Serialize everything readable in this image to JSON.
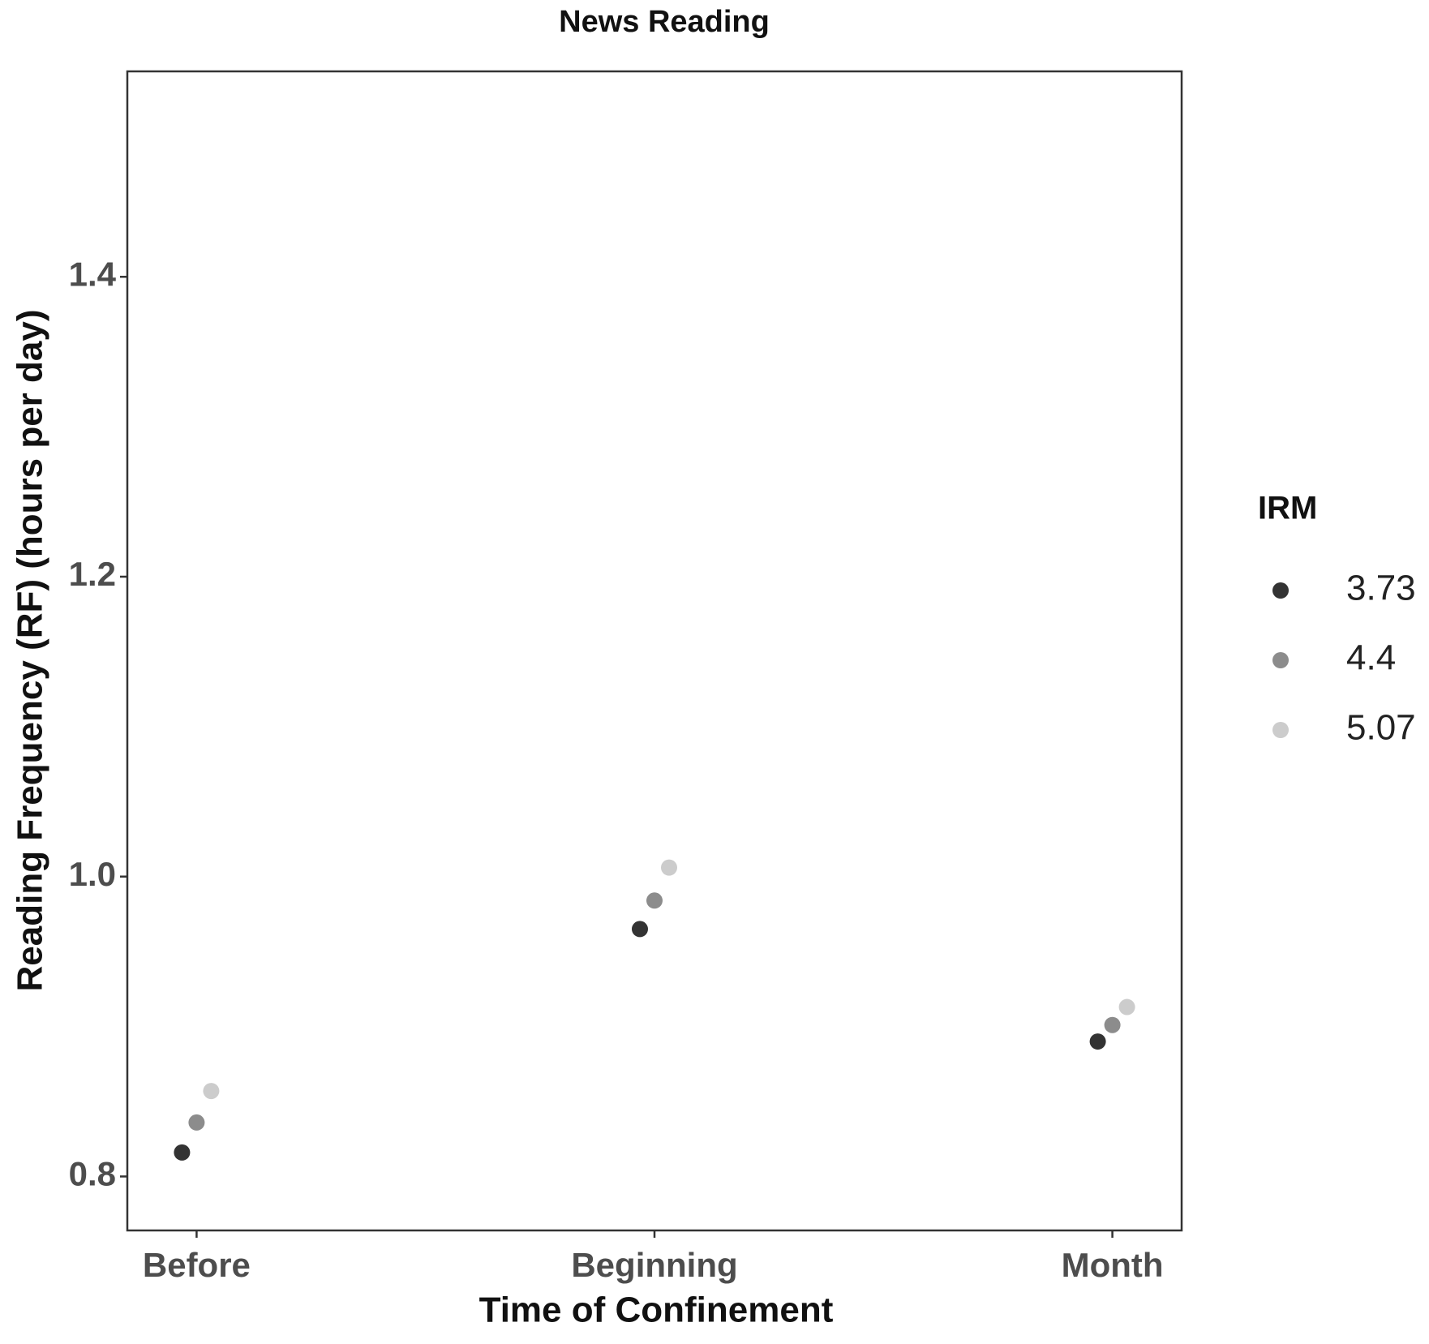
{
  "chart_data": {
    "type": "dot",
    "title": "News Reading",
    "x_label": "Time of Confinement",
    "y_label": "Reading Frequency (RF) (hours per day)",
    "categories": [
      "Before",
      "Beginning",
      "Month"
    ],
    "legend_title": "IRM",
    "series": [
      {
        "name": "3.73",
        "color": "#333333",
        "values": [
          0.816,
          0.965,
          0.89
        ]
      },
      {
        "name": "4.4",
        "color": "#8c8c8c",
        "values": [
          0.836,
          0.984,
          0.901
        ]
      },
      {
        "name": "5.07",
        "color": "#cccccc",
        "values": [
          0.857,
          1.006,
          0.913
        ]
      }
    ],
    "ylim": [
      0.764,
      1.537
    ],
    "yticks": [
      {
        "value": 0.8,
        "label": "0.8"
      },
      {
        "value": 1.0,
        "label": "1.0"
      },
      {
        "value": 1.2,
        "label": "1.2"
      },
      {
        "value": 1.4,
        "label": "1.4"
      }
    ],
    "grid": false
  }
}
